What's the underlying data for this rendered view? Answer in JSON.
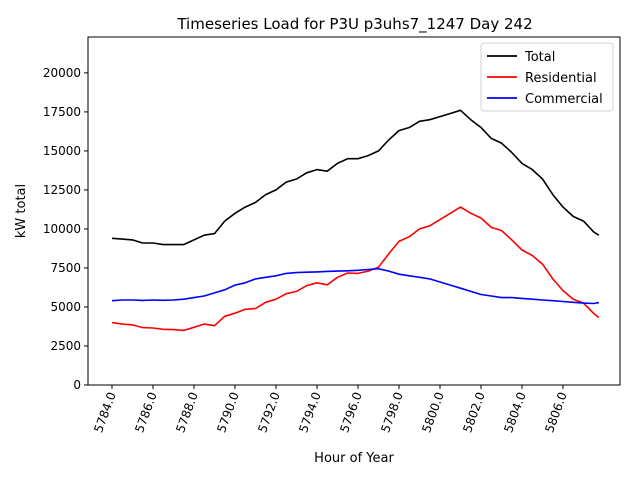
{
  "chart_data": {
    "type": "line",
    "title": "Timeseries Load for P3U p3uhs7_1247  Day 242",
    "xlabel": "Hour of Year",
    "ylabel": "kW total",
    "xlim": [
      5782.83,
      5808.78
    ],
    "ylim": [
      0,
      22300
    ],
    "xticks": [
      5784,
      5786,
      5788,
      5790,
      5792,
      5794,
      5796,
      5798,
      5800,
      5802,
      5804,
      5806
    ],
    "xtick_labels": [
      "5784.0",
      "5786.0",
      "5788.0",
      "5790.0",
      "5792.0",
      "5794.0",
      "5796.0",
      "5798.0",
      "5800.0",
      "5802.0",
      "5804.0",
      "5806.0"
    ],
    "yticks": [
      0,
      2500,
      5000,
      7500,
      10000,
      12500,
      15000,
      17500,
      20000
    ],
    "ytick_labels": [
      "0",
      "2500",
      "5000",
      "7500",
      "10000",
      "12500",
      "15000",
      "17500",
      "20000"
    ],
    "grid": false,
    "legend_position": "top-right",
    "x": [
      5784,
      5784.5,
      5785,
      5785.5,
      5786,
      5786.5,
      5787,
      5787.5,
      5788,
      5788.5,
      5789,
      5789.5,
      5790,
      5790.5,
      5791,
      5791.5,
      5792,
      5792.5,
      5793,
      5793.5,
      5794,
      5794.5,
      5795,
      5795.5,
      5796,
      5796.5,
      5797,
      5797.5,
      5798,
      5798.5,
      5799,
      5799.5,
      5800,
      5800.5,
      5801,
      5801.5,
      5802,
      5802.5,
      5803,
      5803.5,
      5804,
      5804.5,
      5805,
      5805.5,
      5806,
      5806.5,
      5807,
      5807.5,
      5807.75
    ],
    "series": [
      {
        "name": "Total",
        "color": "#000000",
        "values": [
          9400,
          9350,
          9300,
          9100,
          9100,
          9000,
          9000,
          9000,
          9300,
          9600,
          9700,
          10500,
          11000,
          11400,
          11700,
          12200,
          12500,
          13000,
          13200,
          13600,
          13800,
          13700,
          14200,
          14500,
          14500,
          14700,
          15000,
          15700,
          16300,
          16500,
          16900,
          17000,
          17200,
          17400,
          17600,
          17000,
          16500,
          15800,
          15500,
          14900,
          14200,
          13800,
          13200,
          12200,
          11400,
          10800,
          10500,
          9800,
          9600
        ]
      },
      {
        "name": "Residential",
        "color": "#ff0000",
        "values": [
          4000,
          3900,
          3850,
          3680,
          3650,
          3570,
          3550,
          3500,
          3700,
          3900,
          3800,
          4400,
          4600,
          4850,
          4900,
          5300,
          5500,
          5850,
          6000,
          6370,
          6550,
          6420,
          6900,
          7180,
          7150,
          7300,
          7550,
          8400,
          9200,
          9500,
          10000,
          10200,
          10600,
          11000,
          11400,
          11000,
          10700,
          10100,
          9900,
          9300,
          8650,
          8300,
          7750,
          6800,
          6050,
          5500,
          5250,
          4580,
          4320
        ]
      },
      {
        "name": "Commercial",
        "color": "#0000ff",
        "values": [
          5400,
          5450,
          5450,
          5420,
          5450,
          5430,
          5450,
          5500,
          5600,
          5700,
          5900,
          6100,
          6400,
          6550,
          6800,
          6900,
          7000,
          7150,
          7200,
          7230,
          7250,
          7280,
          7300,
          7320,
          7350,
          7400,
          7450,
          7300,
          7100,
          7000,
          6900,
          6800,
          6600,
          6400,
          6200,
          6000,
          5800,
          5700,
          5600,
          5600,
          5550,
          5500,
          5450,
          5400,
          5350,
          5300,
          5250,
          5220,
          5280
        ]
      }
    ]
  }
}
